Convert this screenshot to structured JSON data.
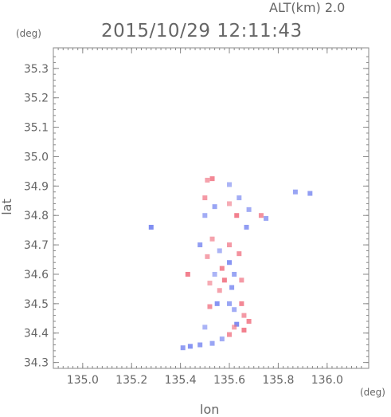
{
  "header": {
    "altitude_label": "ALT(km) 2.0",
    "datetime": "2015/10/29 12:11:43"
  },
  "chart_data": {
    "type": "heatmap",
    "title": "2015/10/29 12:11:43",
    "xlabel": "lon",
    "ylabel": "lat",
    "x_unit": "(deg)",
    "y_unit": "(deg)",
    "xlim": [
      134.88,
      136.17
    ],
    "ylim": [
      34.28,
      35.37
    ],
    "x_ticks": [
      "135.0",
      "135.2",
      "135.4",
      "135.6",
      "135.8",
      "136.0"
    ],
    "x_tick_values": [
      135.0,
      135.2,
      135.4,
      135.6,
      135.8,
      136.0
    ],
    "y_ticks": [
      "34.3",
      "34.4",
      "34.5",
      "34.6",
      "34.7",
      "34.8",
      "34.9",
      "35.0",
      "35.1",
      "35.2",
      "35.3"
    ],
    "y_tick_values": [
      34.3,
      34.4,
      34.5,
      34.6,
      34.7,
      34.8,
      34.9,
      35.0,
      35.1,
      35.2,
      35.3
    ],
    "colors": {
      "positive": "#f07080",
      "negative": "#7080f0",
      "axis": "#888888"
    },
    "cells": [
      {
        "lon": 135.53,
        "lat": 34.925,
        "v": 0.8
      },
      {
        "lon": 135.51,
        "lat": 34.92,
        "v": 0.5
      },
      {
        "lon": 135.6,
        "lat": 34.905,
        "v": -0.4
      },
      {
        "lon": 135.5,
        "lat": 34.86,
        "v": 0.6
      },
      {
        "lon": 135.64,
        "lat": 34.86,
        "v": -0.5
      },
      {
        "lon": 135.54,
        "lat": 34.83,
        "v": -0.6
      },
      {
        "lon": 135.6,
        "lat": 34.84,
        "v": 0.4
      },
      {
        "lon": 135.68,
        "lat": 34.82,
        "v": -0.5
      },
      {
        "lon": 135.73,
        "lat": 34.8,
        "v": 0.7
      },
      {
        "lon": 135.75,
        "lat": 34.79,
        "v": -0.6
      },
      {
        "lon": 135.63,
        "lat": 34.8,
        "v": 0.9
      },
      {
        "lon": 135.67,
        "lat": 34.76,
        "v": -0.7
      },
      {
        "lon": 135.5,
        "lat": 34.8,
        "v": -0.5
      },
      {
        "lon": 135.87,
        "lat": 34.88,
        "v": -0.6
      },
      {
        "lon": 135.93,
        "lat": 34.875,
        "v": -0.7
      },
      {
        "lon": 135.28,
        "lat": 34.76,
        "v": -0.9
      },
      {
        "lon": 135.53,
        "lat": 34.72,
        "v": 0.5
      },
      {
        "lon": 135.48,
        "lat": 34.7,
        "v": -0.7
      },
      {
        "lon": 135.6,
        "lat": 34.7,
        "v": 0.6
      },
      {
        "lon": 135.56,
        "lat": 34.68,
        "v": -0.4
      },
      {
        "lon": 135.64,
        "lat": 34.67,
        "v": 0.7
      },
      {
        "lon": 135.51,
        "lat": 34.66,
        "v": 0.5
      },
      {
        "lon": 135.6,
        "lat": 34.64,
        "v": -0.8
      },
      {
        "lon": 135.57,
        "lat": 34.62,
        "v": 0.8
      },
      {
        "lon": 135.62,
        "lat": 34.6,
        "v": -0.6
      },
      {
        "lon": 135.54,
        "lat": 34.6,
        "v": -0.4
      },
      {
        "lon": 135.58,
        "lat": 34.58,
        "v": 0.9
      },
      {
        "lon": 135.65,
        "lat": 34.58,
        "v": 0.6
      },
      {
        "lon": 135.61,
        "lat": 34.555,
        "v": -0.7
      },
      {
        "lon": 135.56,
        "lat": 34.545,
        "v": 0.5
      },
      {
        "lon": 135.43,
        "lat": 34.6,
        "v": 0.9
      },
      {
        "lon": 135.52,
        "lat": 34.57,
        "v": 0.4
      },
      {
        "lon": 135.55,
        "lat": 34.5,
        "v": -0.8
      },
      {
        "lon": 135.52,
        "lat": 34.49,
        "v": 0.7
      },
      {
        "lon": 135.6,
        "lat": 34.5,
        "v": -0.6
      },
      {
        "lon": 135.65,
        "lat": 34.5,
        "v": 0.8
      },
      {
        "lon": 135.62,
        "lat": 34.48,
        "v": -0.5
      },
      {
        "lon": 135.66,
        "lat": 34.46,
        "v": 0.6
      },
      {
        "lon": 135.68,
        "lat": 34.44,
        "v": 0.8
      },
      {
        "lon": 135.63,
        "lat": 34.43,
        "v": -0.9
      },
      {
        "lon": 135.66,
        "lat": 34.41,
        "v": 0.9
      },
      {
        "lon": 135.6,
        "lat": 34.395,
        "v": 0.7
      },
      {
        "lon": 135.57,
        "lat": 34.38,
        "v": -0.5
      },
      {
        "lon": 135.62,
        "lat": 34.42,
        "v": 0.5
      },
      {
        "lon": 135.5,
        "lat": 34.42,
        "v": -0.4
      },
      {
        "lon": 135.53,
        "lat": 34.365,
        "v": -0.6
      },
      {
        "lon": 135.48,
        "lat": 34.36,
        "v": -0.7
      },
      {
        "lon": 135.44,
        "lat": 34.355,
        "v": -0.8
      },
      {
        "lon": 135.41,
        "lat": 34.35,
        "v": -0.7
      }
    ]
  }
}
